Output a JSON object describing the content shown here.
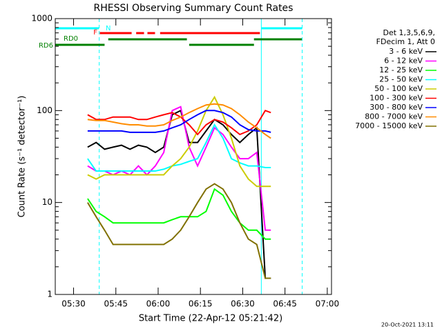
{
  "chart_data": {
    "type": "line",
    "title": "RHESSI Observing Summary Count Rates",
    "xlabel": "Start Time (22-Apr-12 05:21:42)",
    "ylabel": "Count Rate (s⁻¹ detector⁻¹)",
    "footer": "20-Oct-2021 13:11",
    "legend_header": [
      "Det 1,3,5,6,9,",
      "FDecim 1, Att 0"
    ],
    "log_y": true,
    "xlim": [
      23.5,
      121.5
    ],
    "ylim": [
      1,
      1000
    ],
    "xticks": [
      {
        "value": 30,
        "label": "05:30"
      },
      {
        "value": 45,
        "label": "05:45"
      },
      {
        "value": 60,
        "label": "06:00"
      },
      {
        "value": 75,
        "label": "06:15"
      },
      {
        "value": 90,
        "label": "06:30"
      },
      {
        "value": 105,
        "label": "06:45"
      },
      {
        "value": 120,
        "label": "07:00"
      }
    ],
    "yticks": [
      1,
      10,
      100,
      1000
    ],
    "x": [
      35,
      38,
      41,
      44,
      47,
      50,
      53,
      56,
      59,
      62,
      65,
      68,
      71,
      74,
      77,
      80,
      83,
      86,
      89,
      92,
      95,
      98,
      100
    ],
    "series": [
      {
        "name": "3 - 6 keV",
        "color": "#000000",
        "values": [
          40,
          45,
          38,
          40,
          42,
          38,
          42,
          40,
          35,
          40,
          90,
          100,
          45,
          45,
          60,
          80,
          70,
          55,
          45,
          55,
          65,
          1.5,
          1.5
        ]
      },
      {
        "name": "6 - 12 keV",
        "color": "#ff00ff",
        "values": [
          25,
          22,
          22,
          20,
          22,
          20,
          25,
          20,
          25,
          35,
          100,
          110,
          40,
          25,
          40,
          65,
          55,
          40,
          30,
          30,
          35,
          5,
          5
        ]
      },
      {
        "name": "12 - 25 keV",
        "color": "#00ff00",
        "values": [
          11,
          8,
          7,
          6,
          6,
          6,
          6,
          6,
          6,
          6,
          6.5,
          7,
          7,
          7,
          8,
          14,
          12,
          8,
          6,
          5,
          5,
          4,
          4
        ]
      },
      {
        "name": "25 - 50 keV",
        "color": "#00ffff",
        "values": [
          30,
          22,
          22,
          22,
          22,
          22,
          22,
          22,
          22,
          23,
          25,
          26,
          28,
          30,
          45,
          70,
          50,
          30,
          27,
          25,
          25,
          24,
          24
        ]
      },
      {
        "name": "50 - 100 keV",
        "color": "#cccc00",
        "values": [
          20,
          18,
          20,
          20,
          20,
          20,
          20,
          20,
          20,
          20,
          25,
          30,
          40,
          60,
          100,
          140,
          90,
          50,
          25,
          18,
          15,
          15,
          15
        ]
      },
      {
        "name": "100 - 300 keV",
        "color": "#ff0000",
        "values": [
          90,
          80,
          80,
          85,
          85,
          85,
          80,
          80,
          85,
          90,
          95,
          85,
          70,
          55,
          70,
          80,
          75,
          65,
          55,
          60,
          70,
          100,
          95
        ]
      },
      {
        "name": "300 - 800 keV",
        "color": "#0000ff",
        "values": [
          60,
          60,
          60,
          60,
          60,
          58,
          58,
          58,
          58,
          60,
          65,
          70,
          80,
          90,
          100,
          100,
          95,
          85,
          70,
          62,
          60,
          60,
          58
        ]
      },
      {
        "name": "800 - 7000 keV",
        "color": "#ff8c00",
        "values": [
          80,
          78,
          78,
          75,
          72,
          70,
          70,
          68,
          68,
          70,
          78,
          85,
          95,
          105,
          115,
          118,
          115,
          105,
          90,
          75,
          65,
          55,
          50
        ]
      },
      {
        "name": "7000 - 15000 keV",
        "color": "#807000",
        "values": [
          10,
          7,
          5,
          3.5,
          3.5,
          3.5,
          3.5,
          3.5,
          3.5,
          3.5,
          4,
          5,
          7,
          10,
          14,
          16,
          14,
          10,
          6,
          4,
          3.5,
          1.5,
          1.5
        ]
      }
    ],
    "state_bars": [
      {
        "label": "N",
        "color": "#00ffff",
        "intervals": [
          [
            23.5,
            39
          ],
          [
            96.6,
            111.1
          ]
        ]
      },
      {
        "label": "F",
        "color": "#ff0000",
        "intervals": [
          [
            39.3,
            50.6
          ],
          [
            52.2,
            55
          ],
          [
            56.2,
            58.9
          ],
          [
            60.7,
            96.1
          ]
        ]
      },
      {
        "label": "RD0",
        "color": "#008000",
        "intervals": [
          [
            42.3,
            70.2
          ],
          [
            94,
            111
          ]
        ]
      },
      {
        "label": "RD6",
        "color": "#008000",
        "intervals": [
          [
            23.5,
            41
          ],
          [
            71,
            94
          ]
        ]
      }
    ],
    "markers": [
      {
        "x": 39.1,
        "color": "#00ffff",
        "dash": true
      },
      {
        "x": 96.6,
        "color": "#00ffff",
        "dash": false
      },
      {
        "x": 111.1,
        "color": "#00ffff",
        "dash": true
      }
    ]
  }
}
